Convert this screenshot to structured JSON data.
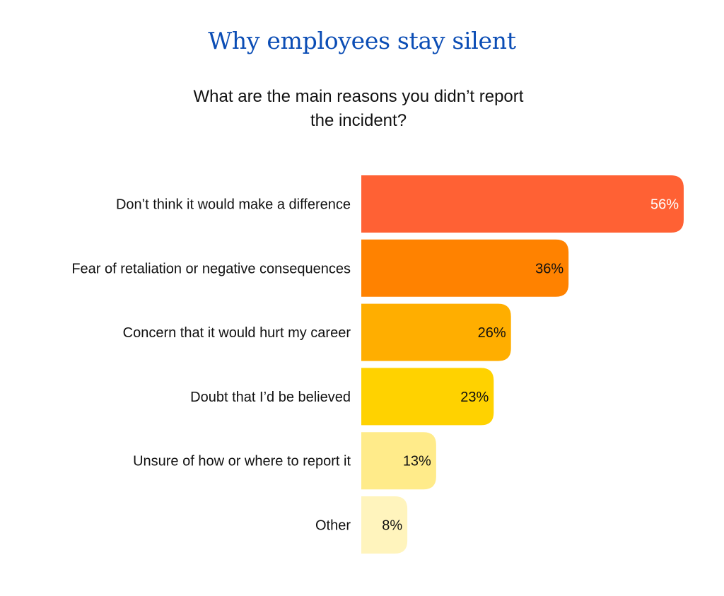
{
  "chart_data": {
    "type": "bar",
    "orientation": "horizontal",
    "title": "Why employees stay silent",
    "subtitle": [
      "What are the main reasons you didn’t report",
      "the incident?"
    ],
    "xlabel": "",
    "ylabel": "",
    "xlim": [
      0,
      56
    ],
    "grid": false,
    "legend": "none",
    "categories": [
      "Don’t think it would make a difference",
      "Fear of retaliation or negative consequences",
      "Concern that it would hurt my career",
      "Doubt that I’d be believed",
      "Unsure of how or where to report it",
      "Other"
    ],
    "values": [
      56,
      36,
      26,
      23,
      13,
      8
    ],
    "value_labels": [
      "56%",
      "36%",
      "26%",
      "23%",
      "13%",
      "8%"
    ],
    "colors": [
      "#FF6134",
      "#FF8200",
      "#FFAE00",
      "#FFD200",
      "#FFEB8A",
      "#FFF4BD"
    ],
    "label_colors": [
      "#FFFFFF",
      "#111111",
      "#111111",
      "#111111",
      "#111111",
      "#111111"
    ],
    "title_color": "#0B4DB5"
  }
}
